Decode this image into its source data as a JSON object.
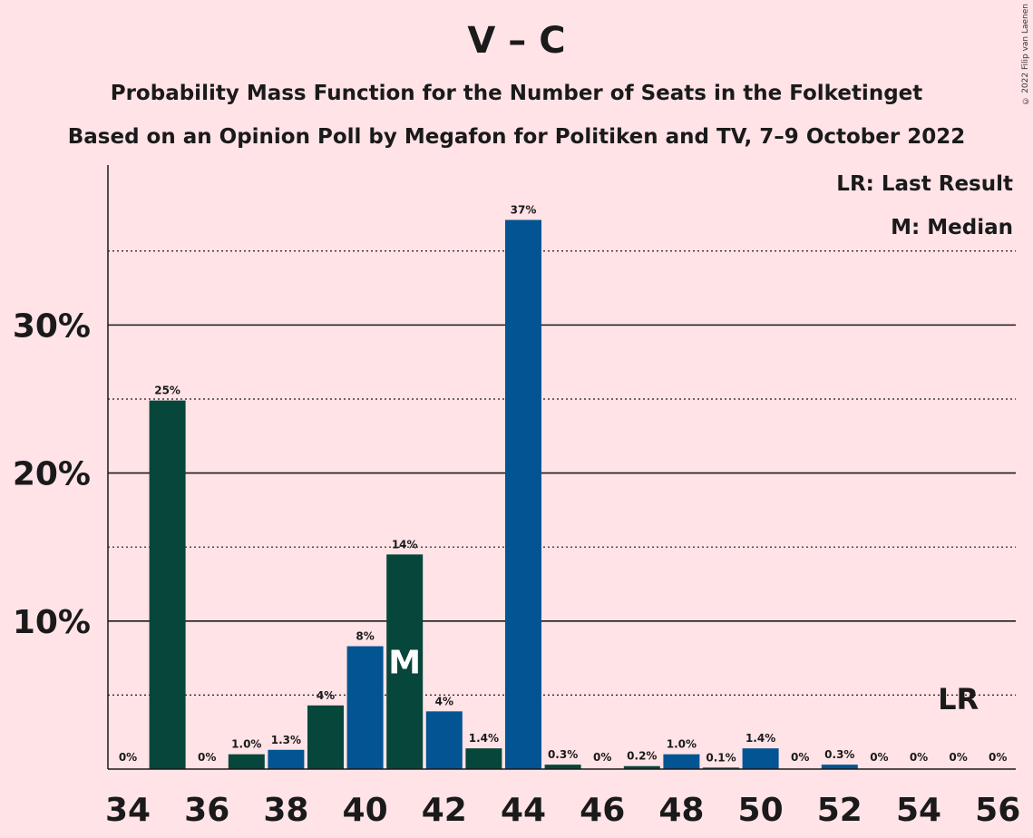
{
  "chart_data": {
    "type": "bar",
    "title": "V – C",
    "subtitle": "Probability Mass Function for the Number of Seats in the Folketinget",
    "subtitle2": "Based on an Opinion Poll by Megafon for Politiken and TV, 7–9 October 2022",
    "copyright": "© 2022 Filip van Laenen",
    "x": [
      34,
      35,
      36,
      37,
      38,
      39,
      40,
      41,
      42,
      43,
      44,
      45,
      46,
      47,
      48,
      49,
      50,
      51,
      52,
      53,
      54,
      55,
      56
    ],
    "values": [
      0,
      24.9,
      0,
      1.0,
      1.3,
      4.3,
      8.3,
      14.5,
      3.9,
      1.4,
      37.1,
      0.3,
      0,
      0.2,
      1.0,
      0.1,
      1.4,
      0,
      0.3,
      0,
      0,
      0,
      0
    ],
    "labels": [
      "0%",
      "25%",
      "0%",
      "1.0%",
      "1.3%",
      "4%",
      "8%",
      "14%",
      "4%",
      "1.4%",
      "37%",
      "0.3%",
      "0%",
      "0.2%",
      "1.0%",
      "0.1%",
      "1.4%",
      "0%",
      "0.3%",
      "0%",
      "0%",
      "0%",
      "0%"
    ],
    "colors": {
      "dark": "#07463A",
      "blue": "#025492"
    },
    "color_pattern": "dark for odd seats, blue for even seats",
    "x_ticks": [
      34,
      36,
      38,
      40,
      42,
      44,
      46,
      48,
      50,
      52,
      54,
      56
    ],
    "y_ticks": [
      10,
      20,
      30
    ],
    "y_tick_labels": [
      "10%",
      "20%",
      "30%"
    ],
    "minor_gridlines": [
      5,
      15,
      25,
      35
    ],
    "ylim": [
      0,
      40.5
    ],
    "median": {
      "x": 41,
      "label": "M"
    },
    "last_result": {
      "x": 55,
      "label": "LR"
    },
    "legend": {
      "lr": "LR: Last Result",
      "median": "M: Median",
      "position": "top-right"
    }
  }
}
